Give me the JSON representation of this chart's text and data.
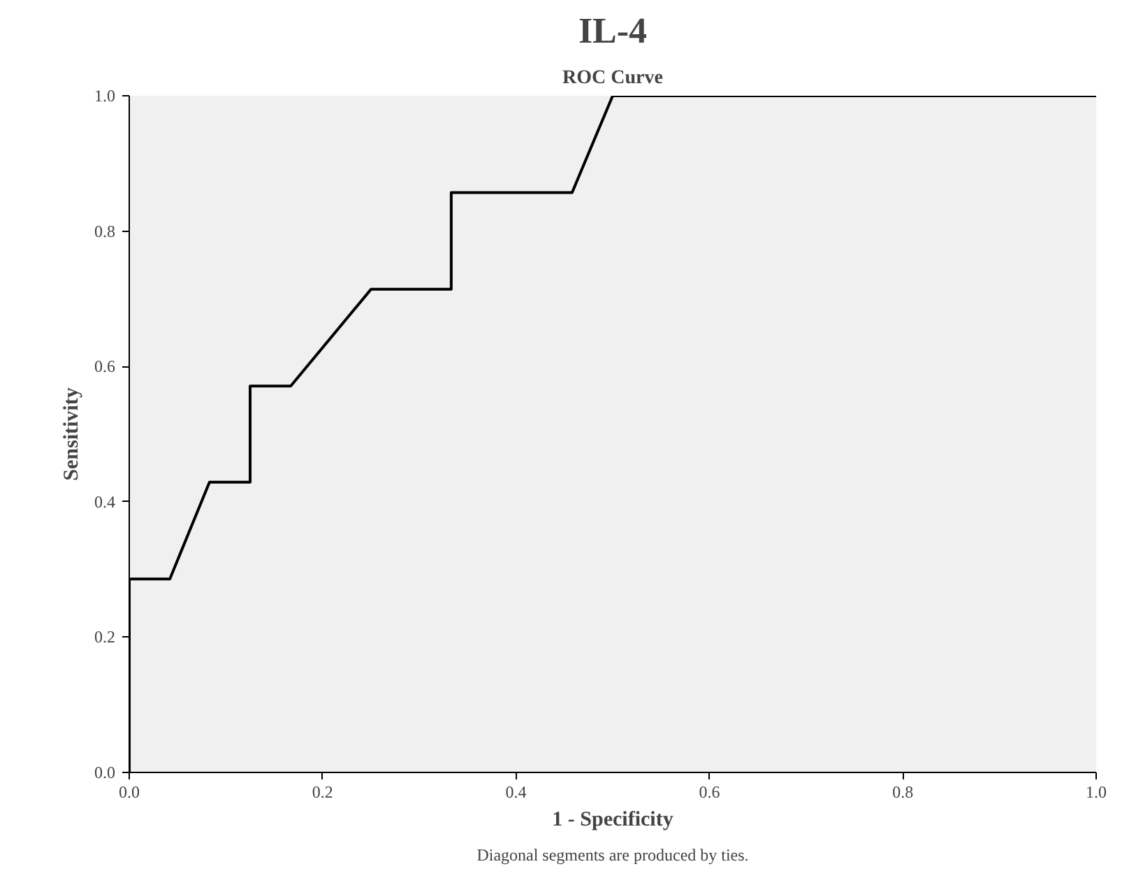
{
  "chart_data": {
    "type": "line",
    "title": "IL-4",
    "subtitle": "ROC Curve",
    "xlabel": "1 - Specificity",
    "ylabel": "Sensitivity",
    "annotations": [
      "Diagonal segments are produced by ties."
    ],
    "series": [
      {
        "color": "#000000",
        "x": [
          0,
          0,
          0.042,
          0.083,
          0.125,
          0.125,
          0.167,
          0.25,
          0.333,
          0.333,
          0.458,
          0.5,
          1
        ],
        "values": [
          0,
          0.286,
          0.286,
          0.429,
          0.429,
          0.571,
          0.571,
          0.714,
          0.714,
          0.857,
          0.857,
          1,
          1
        ]
      }
    ],
    "xlim": [
      0,
      1
    ],
    "ylim": [
      0,
      1
    ],
    "xticks": [
      {
        "value": 0,
        "label": "0.0"
      },
      {
        "value": 0.2,
        "label": "0.2"
      },
      {
        "value": 0.4,
        "label": "0.4"
      },
      {
        "value": 0.6,
        "label": "0.6"
      },
      {
        "value": 0.8,
        "label": "0.8"
      },
      {
        "value": 1,
        "label": "1.0"
      }
    ],
    "yticks": [
      {
        "value": 0,
        "label": "0.0"
      },
      {
        "value": 0.2,
        "label": "0.2"
      },
      {
        "value": 0.4,
        "label": "0.4"
      },
      {
        "value": 0.6,
        "label": "0.6"
      },
      {
        "value": 0.8,
        "label": "0.8"
      },
      {
        "value": 1,
        "label": "1.0"
      }
    ],
    "grid": false,
    "marker": "none",
    "line_style": "solid"
  }
}
